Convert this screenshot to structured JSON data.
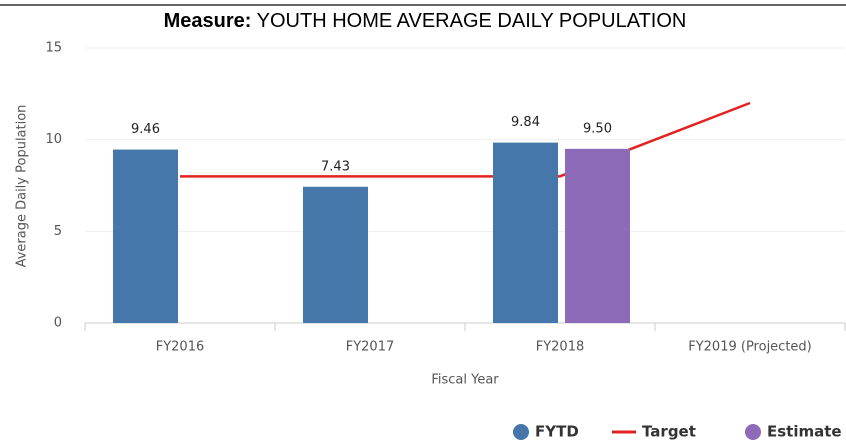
{
  "chart_data": {
    "type": "bar",
    "title_label": "Measure:",
    "title": "YOUTH HOME AVERAGE DAILY POPULATION",
    "x_label": "Fiscal Year",
    "y_label": "Average Daily Population",
    "categories": [
      "FY2016",
      "FY2017",
      "FY2018",
      "FY2019 (Projected)"
    ],
    "series": [
      {
        "name": "FYTD",
        "type": "bar",
        "color": "#4577aa",
        "values": [
          9.46,
          7.43,
          9.84,
          null
        ],
        "value_labels": [
          "9.46",
          "7.43",
          "9.84",
          null
        ]
      },
      {
        "name": "Target",
        "type": "line",
        "color": "#e32222",
        "values": [
          8,
          8,
          8,
          12
        ]
      },
      {
        "name": "Estimate",
        "type": "bar",
        "color": "#8e6bb8",
        "values": [
          null,
          null,
          9.5,
          null
        ],
        "value_labels": [
          null,
          null,
          "9.50",
          null
        ]
      }
    ],
    "ylim": [
      0,
      15
    ],
    "yticks": [
      0,
      5,
      10,
      15
    ],
    "grid": true,
    "legend": "bottom-right"
  }
}
